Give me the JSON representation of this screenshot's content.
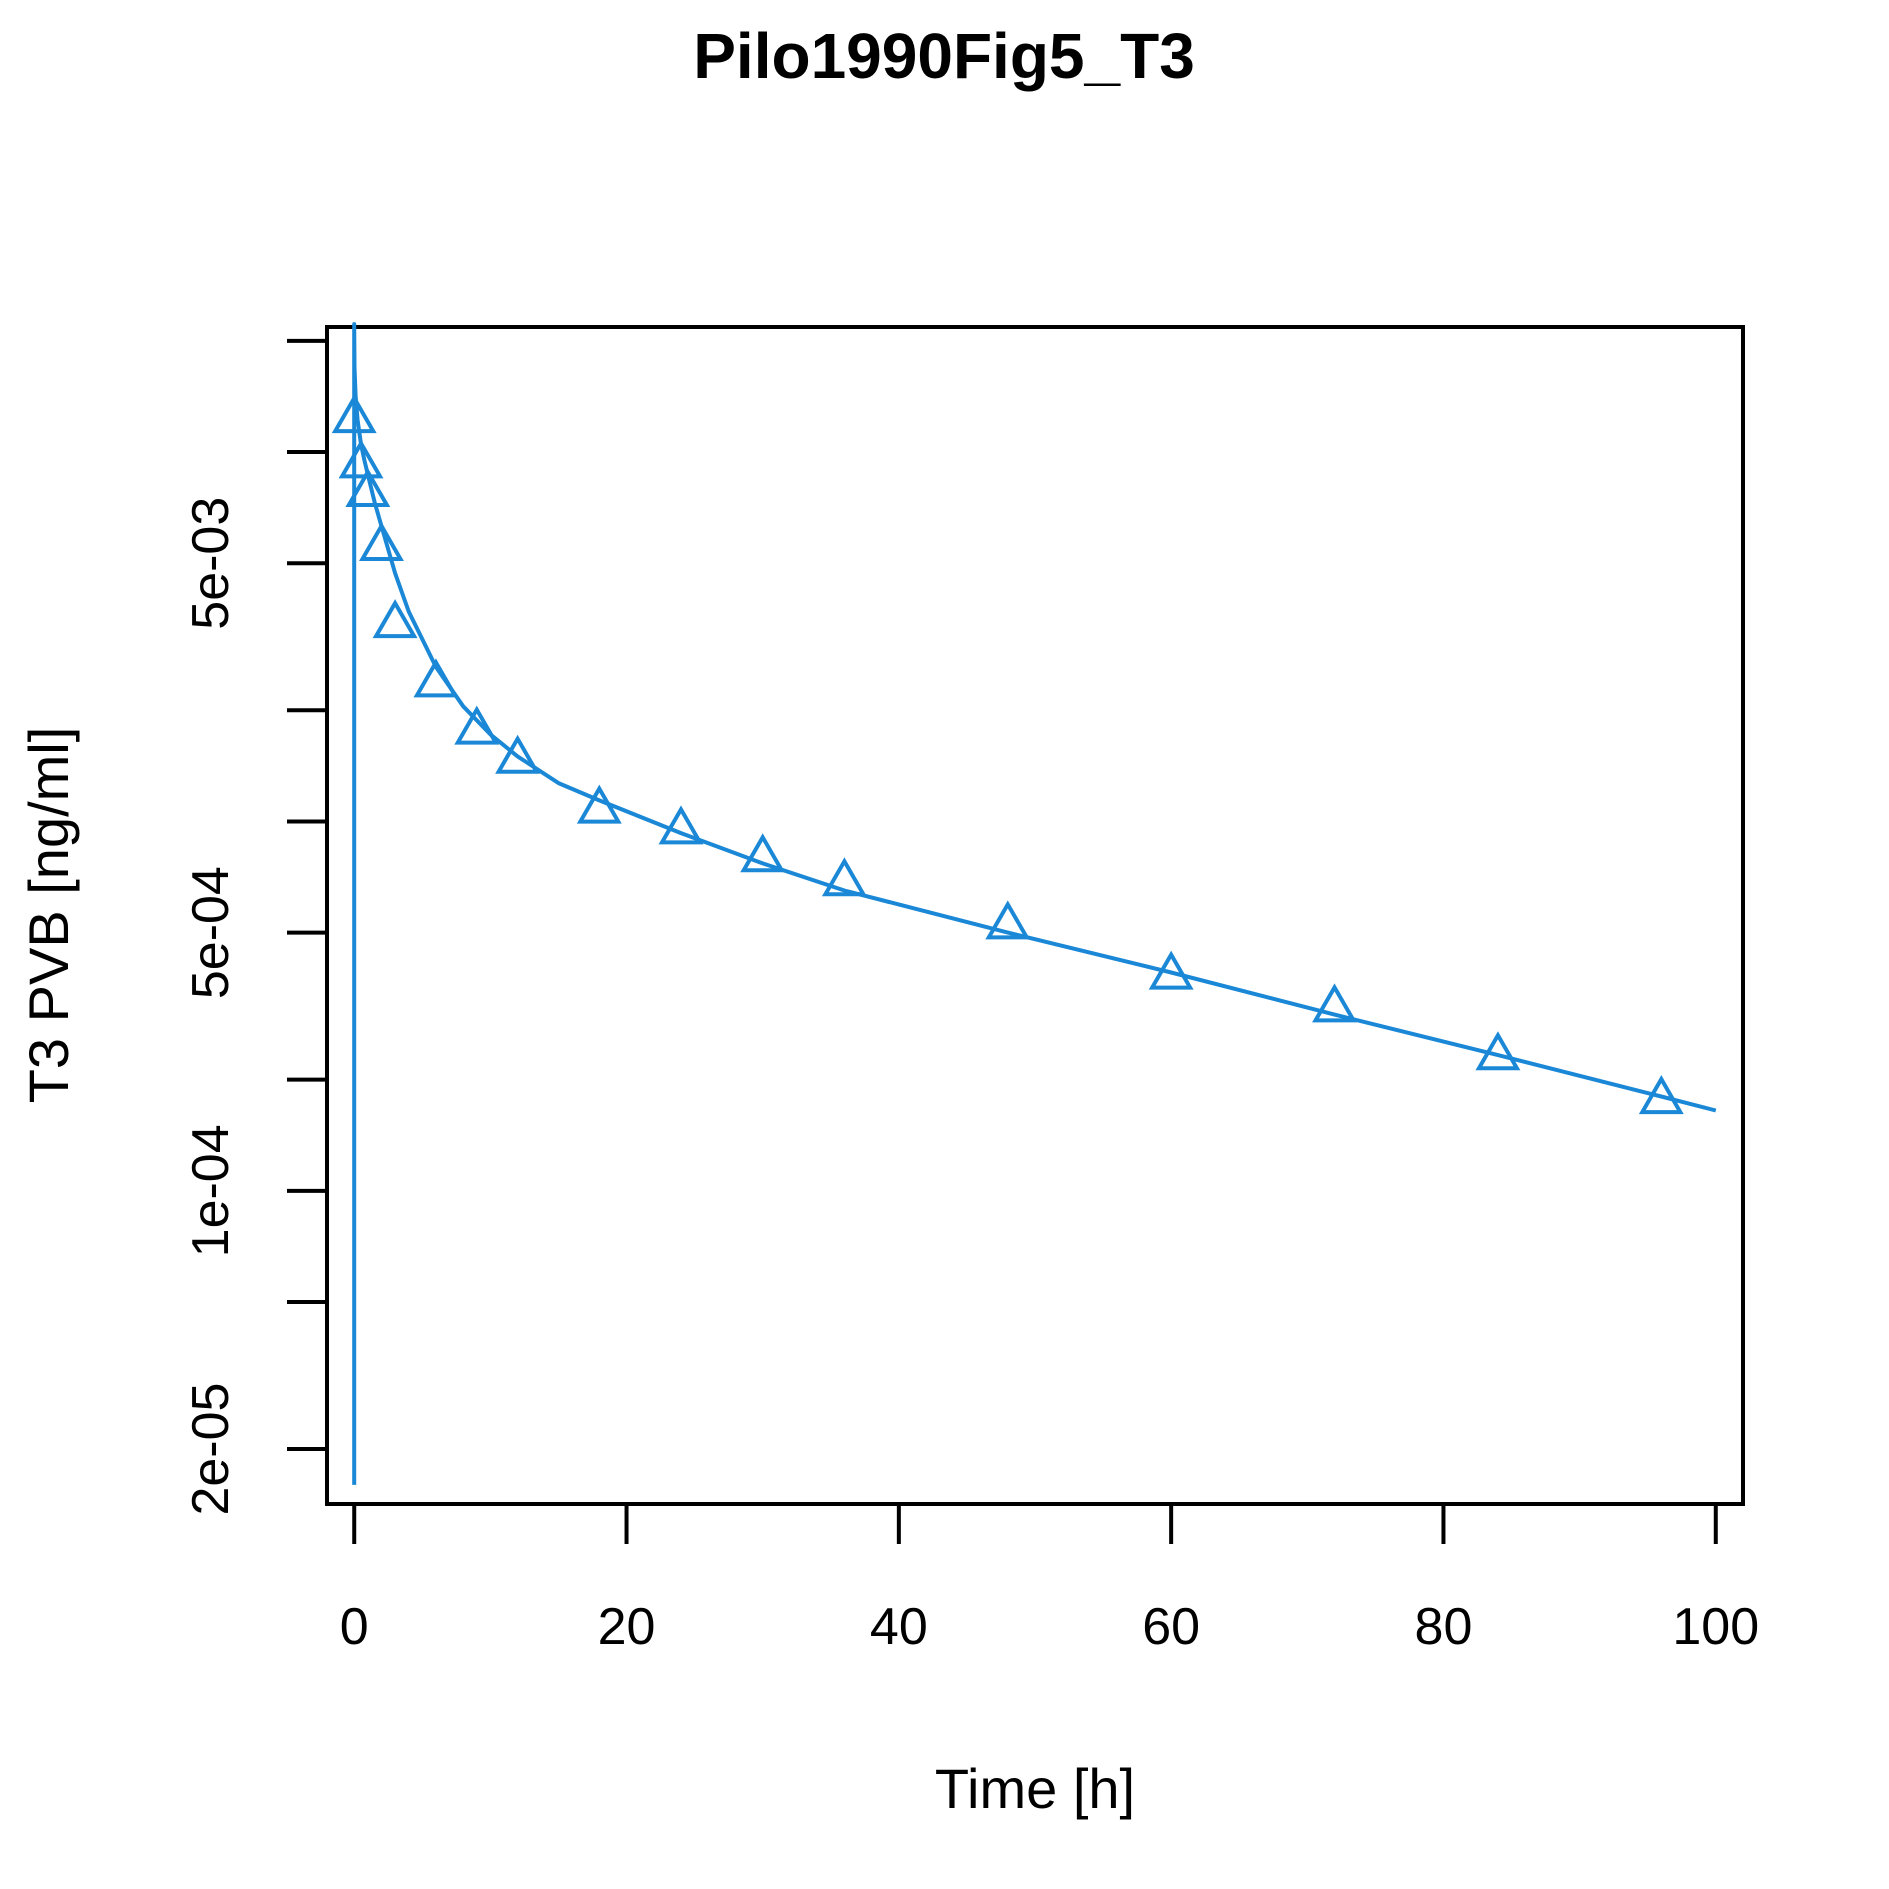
{
  "chart_data": {
    "type": "line",
    "title": "Pilo1990Fig5_T3",
    "xlabel": "Time [h]",
    "ylabel": "T3 PVB [ng/ml]",
    "yscale": "log",
    "xlim": [
      -2,
      102
    ],
    "ylim": [
      1.42e-05,
      0.0218
    ],
    "x_ticks": [
      0,
      20,
      40,
      60,
      80,
      100
    ],
    "x_tick_labels": [
      "0",
      "20",
      "40",
      "60",
      "80",
      "100"
    ],
    "y_ticks": [
      2e-05,
      5e-05,
      0.0001,
      0.0002,
      0.0005,
      0.001,
      0.002,
      0.005,
      0.01,
      0.02
    ],
    "y_tick_labels": [
      {
        "value": 2e-05,
        "label": "2e-05"
      },
      {
        "value": 0.0001,
        "label": "1e-04"
      },
      {
        "value": 0.0005,
        "label": "5e-04"
      },
      {
        "value": 0.005,
        "label": "5e-03"
      }
    ],
    "color": "#1a88d6",
    "grid": false,
    "series": [
      {
        "kind": "line",
        "x": [
          0,
          0,
          0.02,
          0.1,
          0.25,
          0.5,
          0.75,
          1,
          1.5,
          2,
          3,
          4,
          6,
          8,
          10,
          12,
          15,
          18,
          24,
          30,
          36,
          48,
          60,
          72,
          84,
          96,
          100
        ],
        "y": [
          1.6e-05,
          0.0222,
          0.017,
          0.0142,
          0.0122,
          0.0105,
          0.0095,
          0.0087,
          0.0073,
          0.0063,
          0.0047,
          0.0037,
          0.00262,
          0.00205,
          0.00172,
          0.0015,
          0.00127,
          0.00114,
          0.00093,
          0.00077,
          0.00065,
          0.0005,
          0.00039,
          0.0003,
          0.000233,
          0.00018,
          0.000165
        ]
      },
      {
        "kind": "points",
        "marker": "triangle",
        "x": [
          0,
          0.5,
          1,
          2,
          3,
          6,
          9,
          12,
          18,
          24,
          30,
          36,
          48,
          60,
          72,
          84,
          96
        ],
        "y": [
          0.0122,
          0.0092,
          0.0077,
          0.0055,
          0.0034,
          0.00235,
          0.00175,
          0.00146,
          0.00107,
          0.00094,
          0.00079,
          0.00068,
          0.00052,
          0.00038,
          0.00031,
          0.00023,
          0.000175
        ]
      }
    ]
  }
}
